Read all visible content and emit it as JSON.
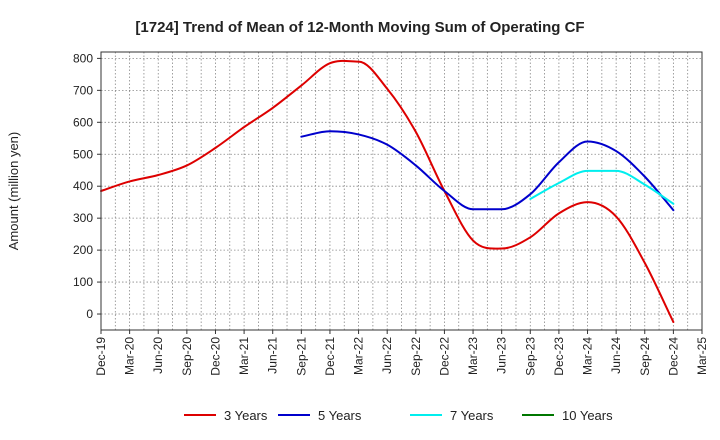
{
  "chart_data": {
    "type": "line",
    "title": "[1724]  Trend of Mean of 12-Month Moving Sum of Operating CF",
    "xlabel": "",
    "ylabel": "Amount (million yen)",
    "ylim": [
      -50,
      820
    ],
    "yticks": [
      0,
      100,
      200,
      300,
      400,
      500,
      600,
      700,
      800
    ],
    "grid": true,
    "legend_position": "bottom",
    "categories": [
      "Dec-19",
      "Mar-20",
      "Jun-20",
      "Sep-20",
      "Dec-20",
      "Mar-21",
      "Jun-21",
      "Sep-21",
      "Dec-21",
      "Mar-22",
      "Jun-22",
      "Sep-22",
      "Dec-22",
      "Mar-23",
      "Jun-23",
      "Sep-23",
      "Dec-23",
      "Mar-24",
      "Jun-24",
      "Sep-24",
      "Dec-24",
      "Mar-25"
    ],
    "series": [
      {
        "name": "3 Years",
        "color": "#dd0000",
        "values": [
          385,
          415,
          435,
          465,
          520,
          585,
          645,
          715,
          785,
          790,
          705,
          570,
          385,
          230,
          205,
          240,
          315,
          350,
          305,
          160,
          -25,
          null
        ]
      },
      {
        "name": "5 Years",
        "color": "#0000cc",
        "values": [
          null,
          null,
          null,
          null,
          null,
          null,
          null,
          555,
          572,
          562,
          530,
          465,
          385,
          328,
          328,
          375,
          475,
          540,
          510,
          430,
          325,
          null
        ]
      },
      {
        "name": "7 Years",
        "color": "#00eeee",
        "values": [
          null,
          null,
          null,
          null,
          null,
          null,
          null,
          null,
          null,
          null,
          null,
          null,
          null,
          null,
          null,
          360,
          410,
          448,
          448,
          405,
          345,
          null
        ]
      },
      {
        "name": "10 Years",
        "color": "#007700",
        "values": [
          null,
          null,
          null,
          null,
          null,
          null,
          null,
          null,
          null,
          null,
          null,
          null,
          null,
          null,
          null,
          null,
          null,
          null,
          null,
          null,
          null,
          null
        ]
      }
    ]
  }
}
